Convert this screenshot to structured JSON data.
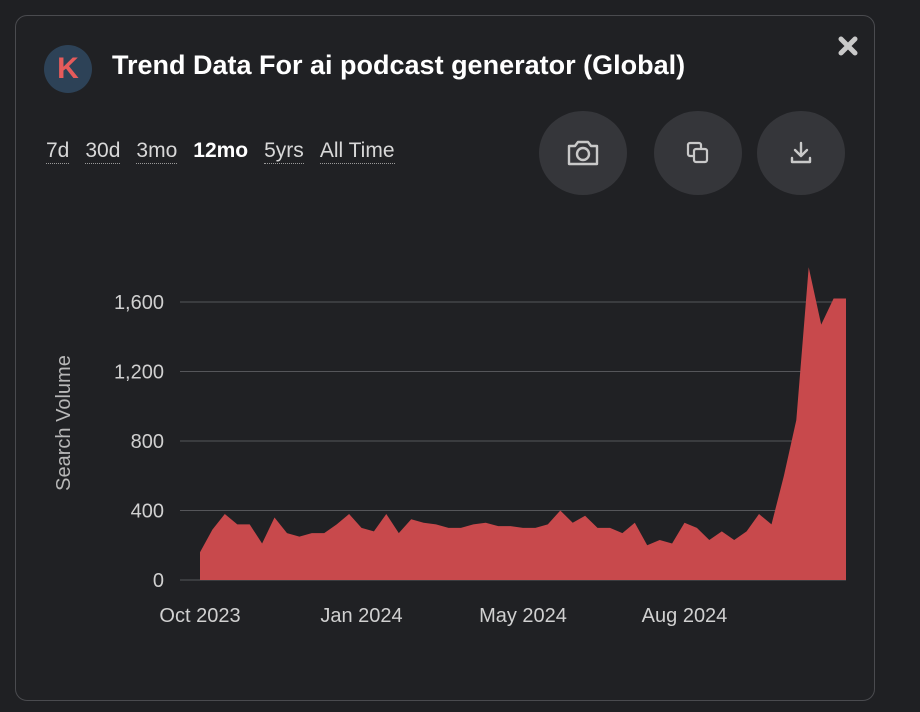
{
  "header": {
    "logo_letter": "K",
    "title": "Trend Data For ai podcast generator (Global)"
  },
  "ranges": [
    "7d",
    "30d",
    "3mo",
    "12mo",
    "5yrs",
    "All Time"
  ],
  "active_range": "12mo",
  "icons": {
    "close": "close-icon",
    "screenshot": "camera-icon",
    "copy": "copy-icon",
    "download": "download-icon"
  },
  "colors": {
    "area_fill": "#c8494c",
    "background": "#202124",
    "grid": "#55565a"
  },
  "chart_data": {
    "type": "area",
    "ylabel": "Search Volume",
    "xlabel": "",
    "ylim": [
      0,
      1800
    ],
    "yticks": [
      0,
      400,
      800,
      1200,
      1600
    ],
    "ytick_labels": [
      "0",
      "400",
      "800",
      "1,200",
      "1,600"
    ],
    "xtick_labels": [
      "Oct 2023",
      "Jan 2024",
      "May 2024",
      "Aug 2024"
    ],
    "xtick_index": [
      0,
      13,
      26,
      39
    ],
    "grid": true,
    "values": [
      160,
      290,
      380,
      320,
      320,
      210,
      360,
      270,
      250,
      270,
      270,
      320,
      380,
      300,
      280,
      380,
      270,
      350,
      330,
      320,
      300,
      300,
      320,
      330,
      310,
      310,
      300,
      300,
      320,
      400,
      330,
      370,
      300,
      300,
      270,
      330,
      200,
      230,
      210,
      330,
      300,
      230,
      280,
      230,
      280,
      380,
      320,
      600,
      920,
      1800,
      1470,
      1620,
      1620
    ]
  }
}
